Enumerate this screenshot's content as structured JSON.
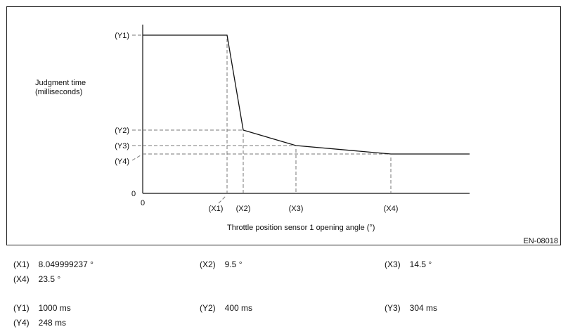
{
  "chart_data": {
    "type": "line",
    "title": "",
    "ylabel_line1": "Judgment time",
    "ylabel_line2": "(milliseconds)",
    "xlabel": "Throttle position sensor 1 opening angle (°)",
    "x_origin_label": "0",
    "y_origin_label": "0",
    "x_ticks": [
      "(X1)",
      "(X2)",
      "(X3)",
      "(X4)"
    ],
    "y_ticks": [
      "(Y1)",
      "(Y2)",
      "(Y3)",
      "(Y4)"
    ],
    "points": [
      {
        "x": 0,
        "y": 1000
      },
      {
        "x": 8.049999237,
        "y": 1000
      },
      {
        "x": 9.5,
        "y": 400
      },
      {
        "x": 14.5,
        "y": 304
      },
      {
        "x": 23.5,
        "y": 248
      },
      {
        "x": "end",
        "y": 248
      }
    ],
    "grid": false,
    "figure_code": "EN-08018"
  },
  "legend": {
    "x": [
      {
        "label": "(X1)",
        "value": "8.049999237 °"
      },
      {
        "label": "(X2)",
        "value": "9.5 °"
      },
      {
        "label": "(X3)",
        "value": "14.5 °"
      },
      {
        "label": "(X4)",
        "value": "23.5 °"
      }
    ],
    "y": [
      {
        "label": "(Y1)",
        "value": "1000 ms"
      },
      {
        "label": "(Y2)",
        "value": "400 ms"
      },
      {
        "label": "(Y3)",
        "value": "304 ms"
      },
      {
        "label": "(Y4)",
        "value": "248 ms"
      }
    ]
  }
}
